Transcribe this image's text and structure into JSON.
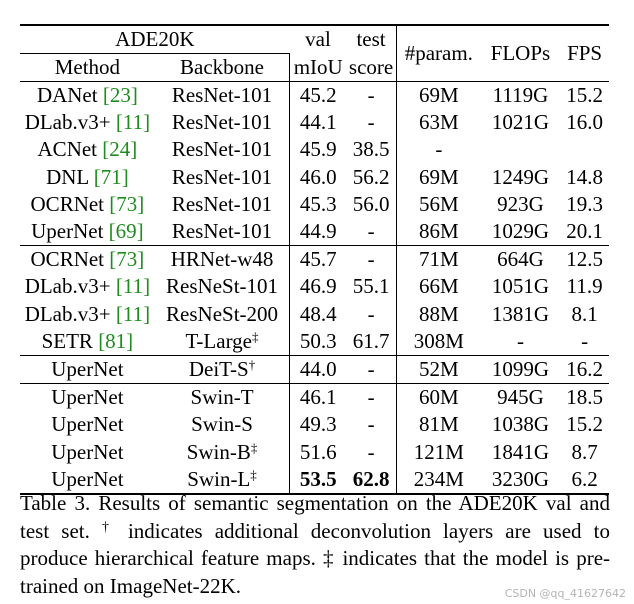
{
  "header": {
    "dataset": "ADE20K",
    "method": "Method",
    "backbone": "Backbone",
    "val_top": "val",
    "val_bottom": "mIoU",
    "test_top": "test",
    "test_bottom": "score",
    "params": "#param.",
    "flops": "FLOPs",
    "fps": "FPS"
  },
  "groups": [
    [
      {
        "method": "DANet ",
        "ref": "[23]",
        "backbone": "ResNet-101",
        "sup": "",
        "miou": "45.2",
        "test": "-",
        "params": "69M",
        "flops": "1119G",
        "fps": "15.2"
      },
      {
        "method": "DLab.v3+ ",
        "ref": "[11]",
        "backbone": "ResNet-101",
        "sup": "",
        "miou": "44.1",
        "test": "-",
        "params": "63M",
        "flops": "1021G",
        "fps": "16.0"
      },
      {
        "method": "ACNet ",
        "ref": "[24]",
        "backbone": "ResNet-101",
        "sup": "",
        "miou": "45.9",
        "test": "38.5",
        "params": "-",
        "flops": "",
        "fps": ""
      },
      {
        "method": "DNL ",
        "ref": "[71]",
        "backbone": "ResNet-101",
        "sup": "",
        "miou": "46.0",
        "test": "56.2",
        "params": "69M",
        "flops": "1249G",
        "fps": "14.8"
      },
      {
        "method": "OCRNet ",
        "ref": "[73]",
        "backbone": "ResNet-101",
        "sup": "",
        "miou": "45.3",
        "test": "56.0",
        "params": "56M",
        "flops": "923G",
        "fps": "19.3"
      },
      {
        "method": "UperNet ",
        "ref": "[69]",
        "backbone": "ResNet-101",
        "sup": "",
        "miou": "44.9",
        "test": "-",
        "params": "86M",
        "flops": "1029G",
        "fps": "20.1"
      }
    ],
    [
      {
        "method": "OCRNet ",
        "ref": "[73]",
        "backbone": "HRNet-w48",
        "sup": "",
        "miou": "45.7",
        "test": "-",
        "params": "71M",
        "flops": "664G",
        "fps": "12.5"
      },
      {
        "method": "DLab.v3+ ",
        "ref": "[11]",
        "backbone": "ResNeSt-101",
        "sup": "",
        "miou": "46.9",
        "test": "55.1",
        "params": "66M",
        "flops": "1051G",
        "fps": "11.9"
      },
      {
        "method": "DLab.v3+ ",
        "ref": "[11]",
        "backbone": "ResNeSt-200",
        "sup": "",
        "miou": "48.4",
        "test": "-",
        "params": "88M",
        "flops": "1381G",
        "fps": "8.1"
      },
      {
        "method": "SETR ",
        "ref": "[81]",
        "backbone": "T-Large",
        "sup": "‡",
        "miou": "50.3",
        "test": "61.7",
        "params": "308M",
        "flops": "-",
        "fps": "-"
      }
    ],
    [
      {
        "method": "UperNet",
        "ref": "",
        "backbone": "DeiT-S",
        "sup": "†",
        "miou": "44.0",
        "test": "-",
        "params": "52M",
        "flops": "1099G",
        "fps": "16.2"
      }
    ],
    [
      {
        "method": "UperNet",
        "ref": "",
        "backbone": "Swin-T",
        "sup": "",
        "miou": "46.1",
        "test": "-",
        "params": "60M",
        "flops": "945G",
        "fps": "18.5"
      },
      {
        "method": "UperNet",
        "ref": "",
        "backbone": "Swin-S",
        "sup": "",
        "miou": "49.3",
        "test": "-",
        "params": "81M",
        "flops": "1038G",
        "fps": "15.2"
      },
      {
        "method": "UperNet",
        "ref": "",
        "backbone": "Swin-B",
        "sup": "‡",
        "miou": "51.6",
        "test": "-",
        "params": "121M",
        "flops": "1841G",
        "fps": "8.7"
      },
      {
        "method": "UperNet",
        "ref": "",
        "backbone": "Swin-L",
        "sup": "‡",
        "miou": "53.5",
        "test": "62.8",
        "params": "234M",
        "flops": "3230G",
        "fps": "6.2",
        "bold": true
      }
    ]
  ],
  "caption": {
    "part1": "Table 3. Results of semantic segmentation on the ADE20K val and test set. ",
    "dagger": "†",
    "part2": " indicates additional deconvolution layers are used to produce hierarchical feature maps. ",
    "ddagger": "‡",
    "part3": " indicates that the model is pre-trained on ImageNet-22K."
  },
  "watermark": "CSDN @qq_41627642",
  "colors": {
    "ref_link": "#1e8c1e",
    "watermark": "#b4b4b4"
  }
}
